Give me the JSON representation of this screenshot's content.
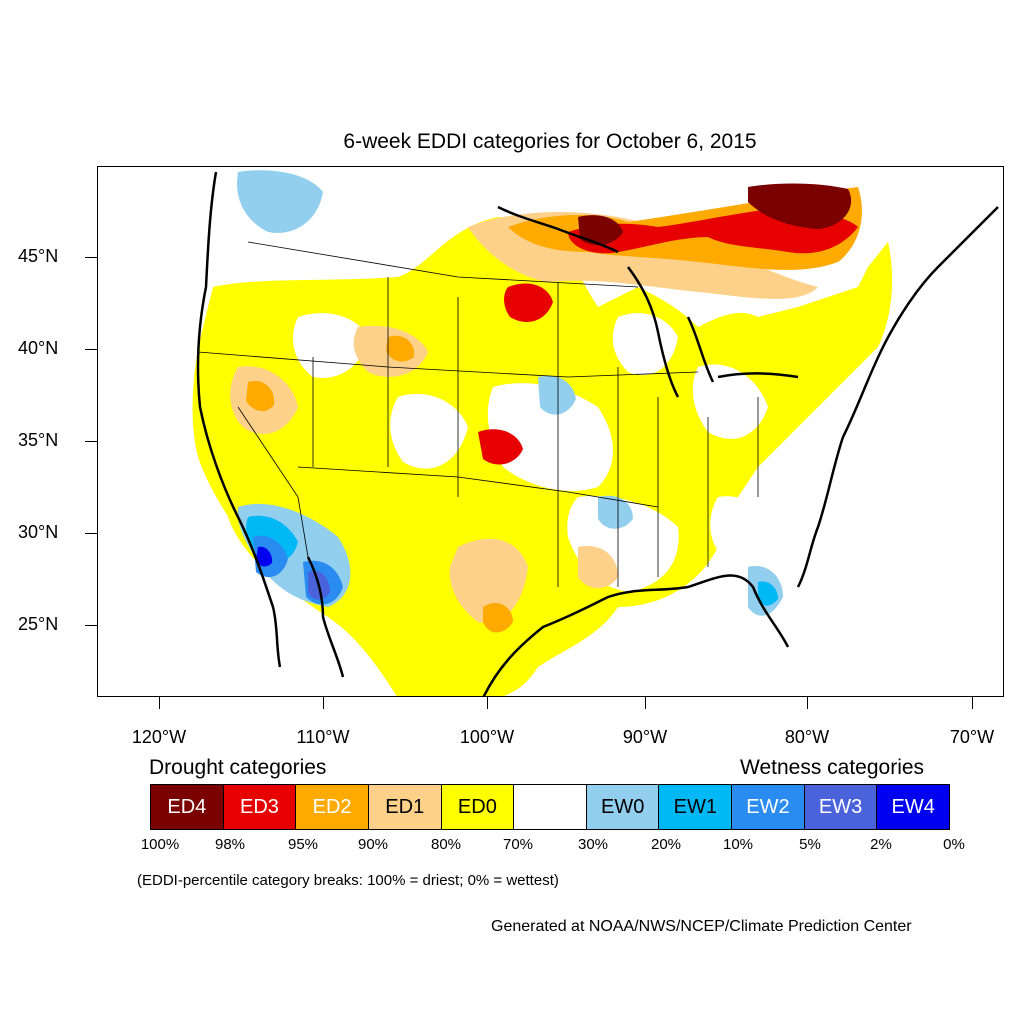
{
  "title": "6-week EDDI categories for October 6, 2015",
  "lat_labels": [
    "45°N",
    "40°N",
    "35°N",
    "30°N",
    "25°N"
  ],
  "lon_labels": [
    "120°W",
    "110°W",
    "100°W",
    "90°W",
    "80°W",
    "70°W"
  ],
  "legend": {
    "drought_heading": "Drought categories",
    "wetness_heading": "Wetness categories",
    "categories": [
      {
        "label": "ED4",
        "color": "#7b0000",
        "text_color": "#ffffff"
      },
      {
        "label": "ED3",
        "color": "#e60000",
        "text_color": "#ffffff"
      },
      {
        "label": "ED2",
        "color": "#ffaa00",
        "text_color": "#ffffff"
      },
      {
        "label": "ED1",
        "color": "#fdd18a",
        "text_color": "#000000"
      },
      {
        "label": "ED0",
        "color": "#ffff00",
        "text_color": "#000000"
      },
      {
        "label": "",
        "color": "#ffffff",
        "text_color": "#000000"
      },
      {
        "label": "EW0",
        "color": "#92cfee",
        "text_color": "#000000"
      },
      {
        "label": "EW1",
        "color": "#00b8f5",
        "text_color": "#000000"
      },
      {
        "label": "EW2",
        "color": "#2a8cf0",
        "text_color": "#ffffff"
      },
      {
        "label": "EW3",
        "color": "#4a63db",
        "text_color": "#ffffff"
      },
      {
        "label": "EW4",
        "color": "#0000f0",
        "text_color": "#ffffff"
      }
    ],
    "percent_breaks": [
      "100%",
      "98%",
      "95%",
      "90%",
      "80%",
      "70%",
      "30%",
      "20%",
      "10%",
      "5%",
      "2%",
      "0%"
    ]
  },
  "breaks_note": "(EDDI-percentile category breaks: 100% = driest; 0% = wettest)",
  "credit": "Generated at NOAA/NWS/NCEP/Climate Prediction Center"
}
